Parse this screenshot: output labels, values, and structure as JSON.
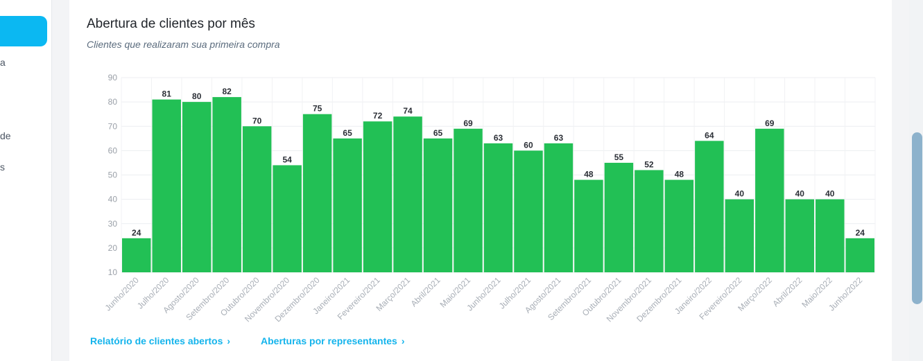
{
  "sidebar": {
    "fragments": [
      "a",
      "de",
      "s"
    ]
  },
  "card": {
    "title": "Abertura de clientes por mês",
    "subtitle": "Clientes que realizaram sua primeira compra"
  },
  "links": {
    "report": "Relatório de clientes abertos",
    "representatives": "Aberturas por representantes"
  },
  "colors": {
    "bar": "#22c055",
    "accent": "#0bb8f2",
    "link": "#14b4ec"
  },
  "chart_data": {
    "type": "bar",
    "categories": [
      "Junho/2020",
      "Julho/2020",
      "Agosto/2020",
      "Setembro/2020",
      "Outubro/2020",
      "Novembro/2020",
      "Dezembro/2020",
      "Janeiro/2021",
      "Fevereiro/2021",
      "Março/2021",
      "Abril/2021",
      "Maio/2021",
      "Junho/2021",
      "Julho/2021",
      "Agosto/2021",
      "Setembro/2021",
      "Outubro/2021",
      "Novembro/2021",
      "Dezembro/2021",
      "Janeiro/2022",
      "Fevereiro/2022",
      "Março/2022",
      "Abril/2022",
      "Maio/2022",
      "Junho/2022"
    ],
    "values": [
      24,
      81,
      80,
      82,
      70,
      54,
      75,
      65,
      72,
      74,
      65,
      69,
      63,
      60,
      63,
      48,
      55,
      52,
      48,
      64,
      40,
      69,
      40,
      40,
      24
    ],
    "yticks": [
      10,
      20,
      30,
      40,
      50,
      60,
      70,
      80,
      90
    ],
    "ylim": [
      10,
      90
    ],
    "grid": true,
    "data_labels": true
  }
}
